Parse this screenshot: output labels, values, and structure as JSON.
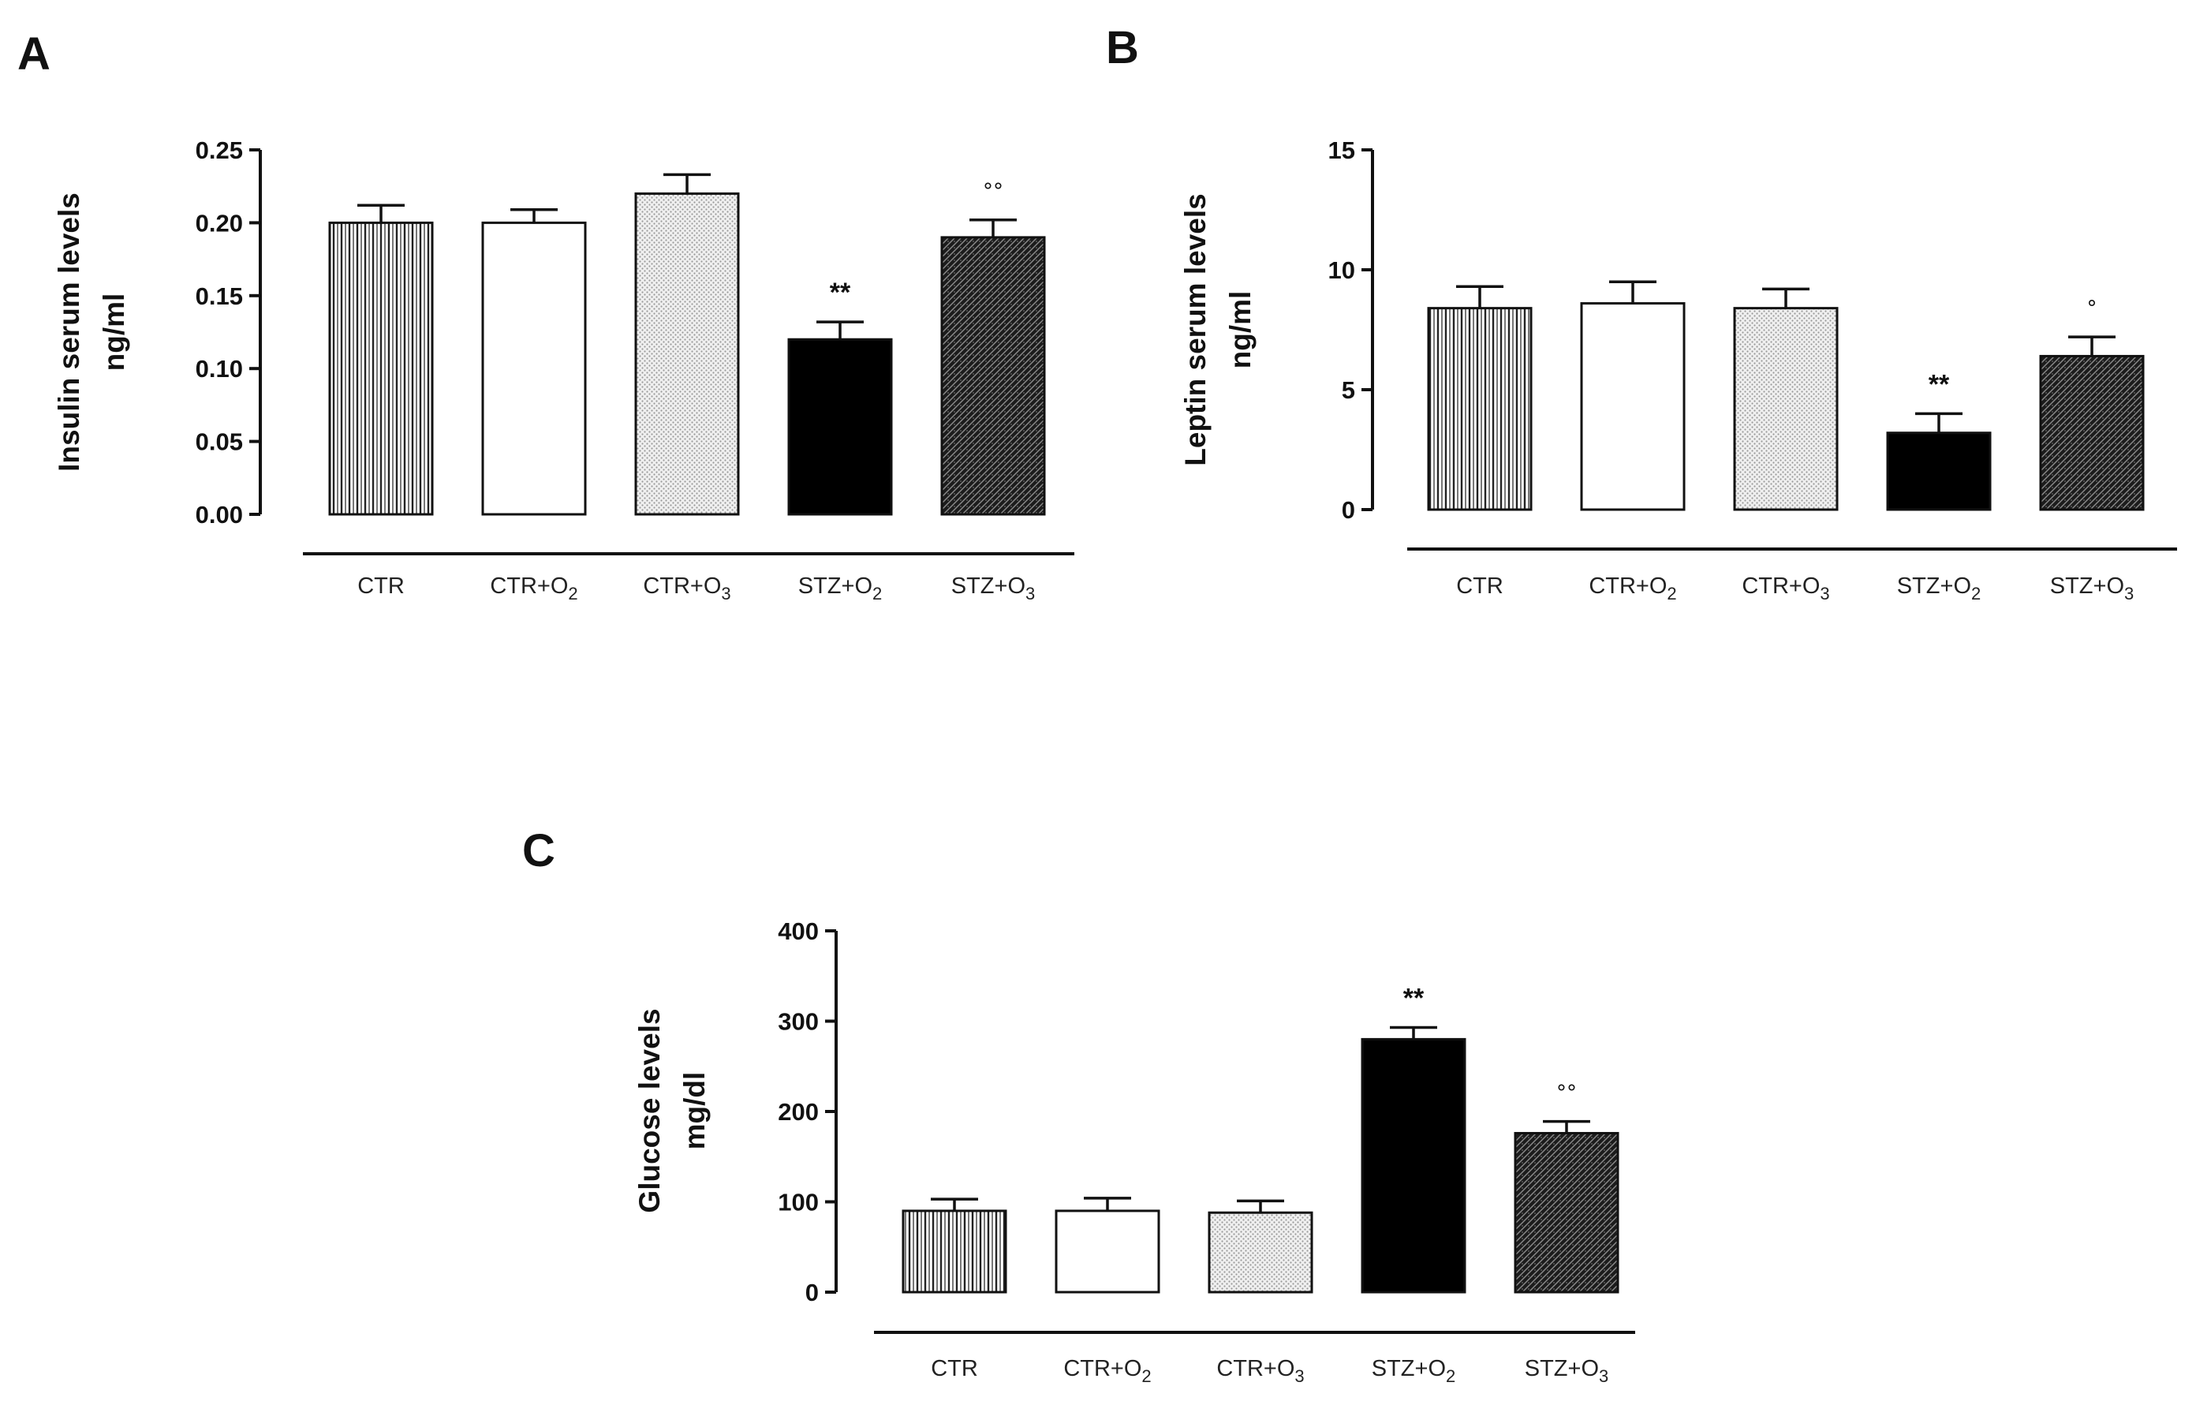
{
  "chart_data": [
    {
      "panel": "A",
      "type": "bar",
      "title": "",
      "ylabel": [
        "Insulin serum levels",
        "ng/ml"
      ],
      "xlabel": "",
      "ylim": [
        0,
        0.25
      ],
      "yticks": [
        "0.00",
        "0.05",
        "0.10",
        "0.15",
        "0.20",
        "0.25"
      ],
      "categories": [
        {
          "base": "CTR",
          "sub": ""
        },
        {
          "base": "CTR+O",
          "sub": "2"
        },
        {
          "base": "CTR+O",
          "sub": "3"
        },
        {
          "base": "STZ+O",
          "sub": "2"
        },
        {
          "base": "STZ+O",
          "sub": "3"
        }
      ],
      "values": [
        0.2,
        0.2,
        0.22,
        0.12,
        0.19
      ],
      "errors": [
        0.012,
        0.009,
        0.013,
        0.012,
        0.012
      ],
      "patterns": [
        "vertical-lines",
        "white",
        "light-dots",
        "solid-black",
        "dense-dark"
      ],
      "annotations": [
        "",
        "",
        "",
        "**",
        "°°"
      ]
    },
    {
      "panel": "B",
      "type": "bar",
      "title": "",
      "ylabel": [
        "Leptin serum levels",
        "ng/ml"
      ],
      "xlabel": "",
      "ylim": [
        0,
        15
      ],
      "yticks": [
        "0",
        "5",
        "10",
        "15"
      ],
      "categories": [
        {
          "base": "CTR",
          "sub": ""
        },
        {
          "base": "CTR+O",
          "sub": "2"
        },
        {
          "base": "CTR+O",
          "sub": "3"
        },
        {
          "base": "STZ+O",
          "sub": "2"
        },
        {
          "base": "STZ+O",
          "sub": "3"
        }
      ],
      "values": [
        8.4,
        8.6,
        8.4,
        3.2,
        6.4
      ],
      "errors": [
        0.9,
        0.9,
        0.8,
        0.8,
        0.8
      ],
      "patterns": [
        "vertical-lines",
        "white",
        "light-dots",
        "solid-black",
        "dense-dark"
      ],
      "annotations": [
        "",
        "",
        "",
        "**",
        "°"
      ]
    },
    {
      "panel": "C",
      "type": "bar",
      "title": "",
      "ylabel": [
        "Glucose levels",
        "mg/dl"
      ],
      "xlabel": "",
      "ylim": [
        0,
        400
      ],
      "yticks": [
        "0",
        "100",
        "200",
        "300",
        "400"
      ],
      "categories": [
        {
          "base": "CTR",
          "sub": ""
        },
        {
          "base": "CTR+O",
          "sub": "2"
        },
        {
          "base": "CTR+O",
          "sub": "3"
        },
        {
          "base": "STZ+O",
          "sub": "2"
        },
        {
          "base": "STZ+O",
          "sub": "3"
        }
      ],
      "values": [
        90,
        90,
        88,
        280,
        176
      ],
      "errors": [
        13,
        14,
        13,
        13,
        13
      ],
      "patterns": [
        "vertical-lines",
        "white",
        "light-dots",
        "solid-black",
        "dense-dark"
      ],
      "annotations": [
        "",
        "",
        "",
        "**",
        "°°"
      ]
    }
  ]
}
